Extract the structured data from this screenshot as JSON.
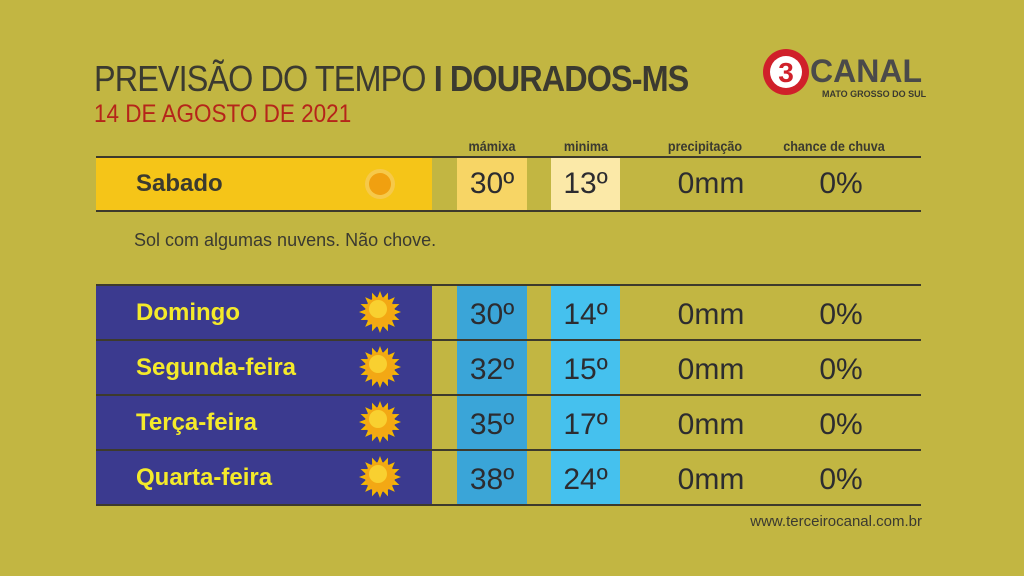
{
  "header": {
    "title_light": "PREVISÃO DO TEMPO",
    "title_bold": "I DOURADOS-MS",
    "date": "14 DE AGOSTO DE 2021"
  },
  "logo": {
    "number": "3",
    "name": "CANAL",
    "region": "MATO GROSSO DO SUL",
    "color": "#d0202a"
  },
  "columns": [
    "mámixa",
    "minima",
    "precipitação",
    "chance de chuva"
  ],
  "today": {
    "day": "Sabado",
    "icon": "sun-icon",
    "max": "30º",
    "min": "13º",
    "precip": "0mm",
    "chance": "0%",
    "description": "Sol com algumas nuvens. Não chove."
  },
  "forecast": [
    {
      "day": "Domingo",
      "icon": "sun-icon",
      "max": "30º",
      "min": "14º",
      "precip": "0mm",
      "chance": "0%"
    },
    {
      "day": "Segunda-feira",
      "icon": "sun-icon",
      "max": "32º",
      "min": "15º",
      "precip": "0mm",
      "chance": "0%"
    },
    {
      "day": "Terça-feira",
      "icon": "sun-icon",
      "max": "35º",
      "min": "17º",
      "precip": "0mm",
      "chance": "0%"
    },
    {
      "day": "Quarta-feira",
      "icon": "sun-icon",
      "max": "38º",
      "min": "24º",
      "precip": "0mm",
      "chance": "0%"
    }
  ],
  "footer": {
    "url": "www.terceirocanal.com.br"
  },
  "colors": {
    "background": "#c2b642",
    "today_band": "#f5c518",
    "forecast_band": "#3b3a8f",
    "max_col": "#3aa5d8",
    "min_col": "#45c1ee"
  }
}
